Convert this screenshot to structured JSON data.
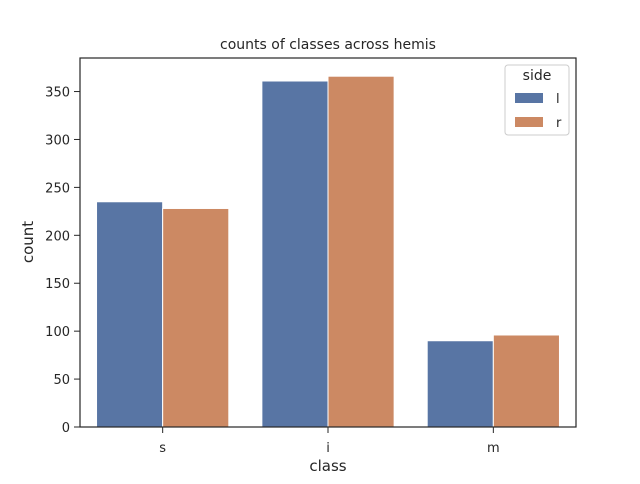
{
  "chart_data": {
    "type": "bar",
    "title": "counts of classes across hemis",
    "xlabel": "class",
    "ylabel": "count",
    "categories": [
      "s",
      "i",
      "m"
    ],
    "series": [
      {
        "name": "l",
        "color": "#5875a4",
        "values": [
          235,
          361,
          90
        ]
      },
      {
        "name": "r",
        "color": "#cc8963",
        "values": [
          228,
          366,
          96
        ]
      }
    ],
    "ylim": [
      0,
      385
    ],
    "yticks": [
      0,
      50,
      100,
      150,
      200,
      250,
      300,
      350
    ],
    "grid": false,
    "legend": {
      "title": "side",
      "placement": "top-right"
    }
  }
}
